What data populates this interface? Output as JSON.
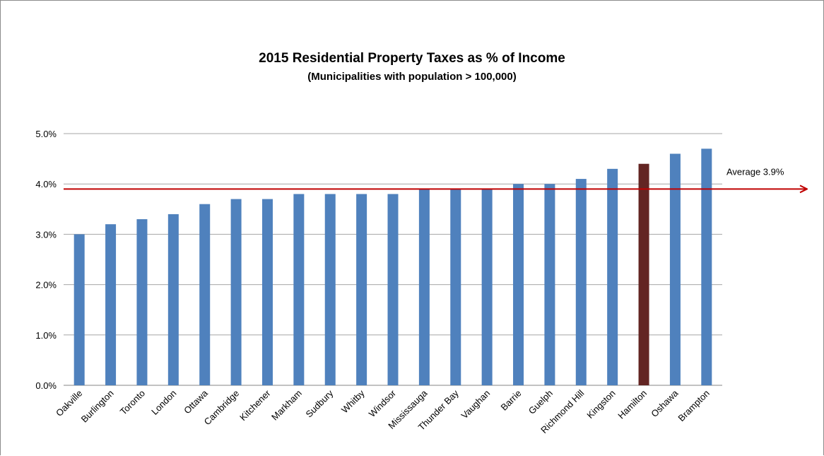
{
  "chart_data": {
    "type": "bar",
    "title": "2015 Residential Property Taxes as % of Income",
    "subtitle": "(Municipalities with population > 100,000)",
    "xlabel": "",
    "ylabel": "",
    "ylim": [
      0,
      5
    ],
    "y_ticks": [
      "0.0%",
      "1.0%",
      "2.0%",
      "3.0%",
      "4.0%",
      "5.0%"
    ],
    "grid": true,
    "categories": [
      "Oakville",
      "Burlington",
      "Toronto",
      "London",
      "Ottawa",
      "Cambridge",
      "Kitchener",
      "Markham",
      "Sudbury",
      "Whitby",
      "Windsor",
      "Mississauga",
      "Thunder Bay",
      "Vaughan",
      "Barrie",
      "Guelph",
      "Richmond Hill",
      "Kingston",
      "Hamilton",
      "Oshawa",
      "Brampton"
    ],
    "values": [
      3.0,
      3.2,
      3.3,
      3.4,
      3.6,
      3.7,
      3.7,
      3.8,
      3.8,
      3.8,
      3.8,
      3.9,
      3.9,
      3.9,
      4.0,
      4.0,
      4.1,
      4.3,
      4.4,
      4.6,
      4.7
    ],
    "highlight_category": "Hamilton",
    "average": {
      "value": 3.9,
      "label": "Average 3.9%"
    },
    "colors": {
      "bar": "#4f81bd",
      "highlight": "#632523",
      "average_line": "#c00000",
      "grid": "#a6a6a6",
      "axis": "#868686"
    }
  }
}
